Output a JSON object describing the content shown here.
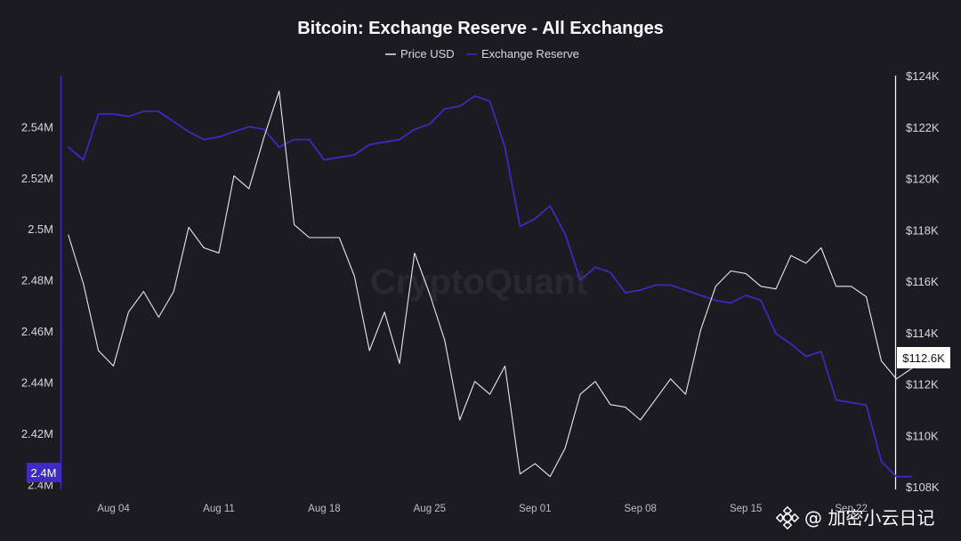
{
  "chart_data": {
    "type": "line",
    "title": "Bitcoin: Exchange Reserve - All Exchanges",
    "legend_position": "top-center",
    "grid": false,
    "watermark": "CryptoQuant",
    "x_tick_labels": [
      "Aug 04",
      "Aug 11",
      "Aug 18",
      "Aug 25",
      "Sep 01",
      "Sep 08",
      "Sep 15",
      "Sep 22"
    ],
    "x_tick_index": [
      3,
      10,
      17,
      24,
      31,
      38,
      45,
      52
    ],
    "x_index_range": [
      -0.4,
      54.8
    ],
    "left_axis": {
      "ticks": [
        2400000,
        2420000,
        2440000,
        2460000,
        2480000,
        2500000,
        2520000,
        2540000
      ],
      "tick_labels": [
        "2.4M",
        "2.42M",
        "2.44M",
        "2.46M",
        "2.48M",
        "2.5M",
        "2.52M",
        "2.54M"
      ],
      "range": [
        2398000,
        2560000
      ]
    },
    "right_axis": {
      "ticks": [
        108000,
        110000,
        112000,
        114000,
        116000,
        118000,
        120000,
        122000,
        124000
      ],
      "tick_labels": [
        "$108K",
        "$110K",
        "$112K",
        "$114K",
        "$116K",
        "$118K",
        "$120K",
        "$122K",
        "$124K"
      ],
      "range": [
        107900,
        124000
      ]
    },
    "series": [
      {
        "name": "Price USD",
        "axis": "right",
        "color": "#e8e8ec",
        "last_value_label": "$112.6K",
        "values": [
          117800,
          115900,
          113300,
          112700,
          114800,
          115600,
          114600,
          115600,
          118100,
          117300,
          117100,
          120100,
          119600,
          121600,
          123400,
          118200,
          117700,
          117700,
          117700,
          116200,
          113300,
          114800,
          112800,
          117100,
          115500,
          113700,
          110600,
          112100,
          111600,
          112700,
          108500,
          108900,
          108400,
          109500,
          111600,
          112100,
          111200,
          111100,
          110600,
          111400,
          112200,
          111600,
          114100,
          115800,
          116400,
          116300,
          115800,
          115700,
          117000,
          116700,
          117300,
          115800,
          115800,
          115400,
          112900,
          112200,
          112600
        ]
      },
      {
        "name": "Exchange Reserve",
        "axis": "left",
        "color": "#3d2bc4",
        "values": [
          2532000,
          2527000,
          2545000,
          2545000,
          2544000,
          2546000,
          2546000,
          2542000,
          2538000,
          2535000,
          2536000,
          2538000,
          2540000,
          2539000,
          2532000,
          2535000,
          2535000,
          2527000,
          2528000,
          2529000,
          2533000,
          2534000,
          2535000,
          2539000,
          2541000,
          2547000,
          2548000,
          2552000,
          2550000,
          2532000,
          2501000,
          2504000,
          2509000,
          2498000,
          2480000,
          2485000,
          2483000,
          2475000,
          2476000,
          2478000,
          2478000,
          2476000,
          2474000,
          2472000,
          2471000,
          2474000,
          2472000,
          2459000,
          2455000,
          2450000,
          2452000,
          2433000,
          2432000,
          2431000,
          2409000,
          2403000,
          2403000
        ]
      }
    ],
    "left_axis_highlight_label": "2.4M"
  },
  "footer": {
    "source_label": "@ 加密小云日记",
    "brand_icon": "binance-square-icon"
  },
  "colors": {
    "background": "#1c1b22",
    "reserve_line": "#3d2bc4",
    "price_line": "#e8e8ec",
    "left_axis_line": "#3d2bc4",
    "right_axis_line": "#ffffff"
  }
}
